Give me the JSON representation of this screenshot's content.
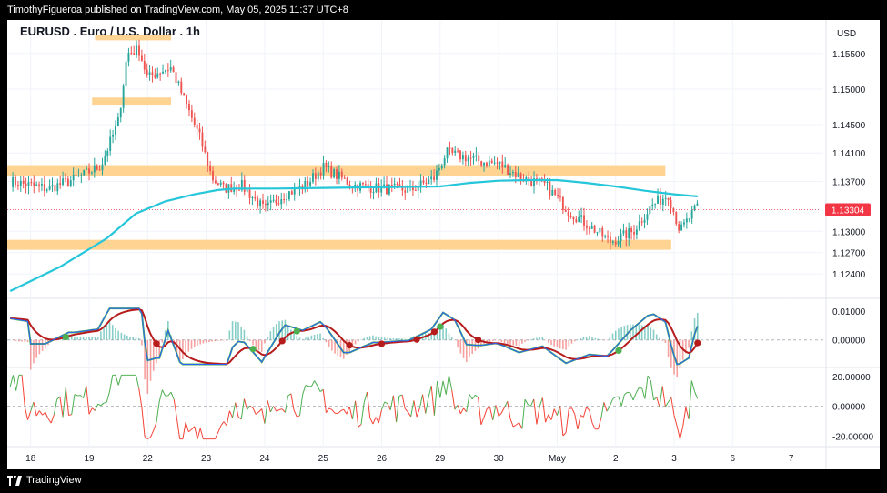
{
  "header": {
    "published": "TimothyFigueroa published on TradingView.com, May 05, 2025 11:37 UTC+8"
  },
  "footer": {
    "brand": "TradingView"
  },
  "colors": {
    "up": "#26a69a",
    "down": "#ef5350",
    "zone": "#ffcc80",
    "ma": "#26c6da",
    "macd_line": "#2962ff",
    "signal_line": "#b71c1c",
    "macd_cross_up": "#4caf50",
    "osc_up": "#4caf50",
    "osc_down": "#f44336",
    "price_tag": "#f23645"
  },
  "chart_data": [
    {
      "type": "candlestick",
      "title": "EURUSD . Euro / U.S. Dollar . 1h",
      "currency": "USD",
      "last_price_label": "1.13304",
      "last_price": 1.13304,
      "y_ticks": [
        "1.15500",
        "1.15000",
        "1.14500",
        "1.14100",
        "1.13700",
        "1.13000",
        "1.12700",
        "1.12400"
      ],
      "y_tick_values": [
        1.155,
        1.15,
        1.145,
        1.141,
        1.137,
        1.13,
        1.127,
        1.124
      ],
      "x_ticks": [
        "18",
        "19",
        "22",
        "23",
        "24",
        "25",
        "26",
        "29",
        "30",
        "May",
        "2",
        "3",
        "6",
        "7"
      ],
      "x_tick_days": [
        0,
        1,
        2,
        3,
        4,
        5,
        6,
        7,
        8,
        9,
        10,
        11,
        12,
        13
      ],
      "ylim": [
        1.1207,
        1.1597
      ],
      "xlim_days": [
        -0.4,
        13.55
      ],
      "zones": [
        {
          "x0": 1.1,
          "x1": 2.4,
          "y0": 1.157,
          "y1": 1.1576
        },
        {
          "x0": 1.05,
          "x1": 2.4,
          "y0": 1.1478,
          "y1": 1.1488
        },
        {
          "x0": -0.4,
          "x1": 10.85,
          "y0": 1.1378,
          "y1": 1.1393
        },
        {
          "x0": -0.4,
          "x1": 10.95,
          "y0": 1.1274,
          "y1": 1.1288
        }
      ],
      "ma_series": {
        "x": [
          -0.35,
          0.5,
          1.3,
          1.8,
          2.3,
          2.8,
          3.2,
          3.5,
          4.2,
          5.0,
          6.0,
          7.0,
          7.5,
          8.0,
          8.5,
          9.0,
          9.5,
          10.0,
          10.5,
          11.0,
          11.4
        ],
        "y": [
          1.1216,
          1.125,
          1.129,
          1.1325,
          1.1342,
          1.1352,
          1.1358,
          1.136,
          1.136,
          1.1361,
          1.1362,
          1.1363,
          1.1368,
          1.1371,
          1.1372,
          1.1372,
          1.1368,
          1.1363,
          1.1357,
          1.1352,
          1.1349
        ]
      },
      "anchors": {
        "x": [
          -0.35,
          0.3,
          0.8,
          1.2,
          1.5,
          1.65,
          1.85,
          2.0,
          2.2,
          2.4,
          2.6,
          2.9,
          3.1,
          3.3,
          3.6,
          4.0,
          4.3,
          4.7,
          5.0,
          5.5,
          6.0,
          6.5,
          6.9,
          7.1,
          7.4,
          7.7,
          8.0,
          8.4,
          8.8,
          9.2,
          9.6,
          9.9,
          10.3,
          10.6,
          10.9,
          11.1,
          11.4
        ],
        "y": [
          1.137,
          1.136,
          1.1375,
          1.1392,
          1.1455,
          1.155,
          1.1555,
          1.1515,
          1.1525,
          1.153,
          1.149,
          1.143,
          1.1375,
          1.136,
          1.1365,
          1.133,
          1.135,
          1.1365,
          1.139,
          1.1365,
          1.136,
          1.1358,
          1.1375,
          1.141,
          1.1405,
          1.1398,
          1.1395,
          1.1375,
          1.1365,
          1.1328,
          1.1305,
          1.1285,
          1.13,
          1.1335,
          1.1352,
          1.13,
          1.1335
        ]
      }
    },
    {
      "type": "line",
      "indicator": "macd",
      "y_ticks": [
        "0.01000",
        "0.00000"
      ],
      "y_tick_values": [
        0.01,
        0.0
      ],
      "ylim": [
        -0.0093,
        0.0142
      ],
      "signal_dots": [
        {
          "x": 0.6,
          "cross": "up"
        },
        {
          "x": 2.15,
          "cross": "down"
        },
        {
          "x": 3.8,
          "cross": "up"
        },
        {
          "x": 4.3,
          "cross": "down"
        },
        {
          "x": 4.55,
          "cross": "up"
        },
        {
          "x": 5.45,
          "cross": "down"
        },
        {
          "x": 6.0,
          "cross": "down"
        },
        {
          "x": 6.6,
          "cross": "down"
        },
        {
          "x": 6.9,
          "cross": "down"
        },
        {
          "x": 7.0,
          "cross": "up"
        },
        {
          "x": 7.65,
          "cross": "down"
        },
        {
          "x": 10.05,
          "cross": "up"
        },
        {
          "x": 11.4,
          "cross": "down"
        }
      ]
    },
    {
      "type": "line",
      "indicator": "oscillator",
      "y_ticks": [
        "20.00000",
        "0.00000",
        "-20.00000"
      ],
      "y_tick_values": [
        20,
        0,
        -20
      ],
      "ylim": [
        -26.5,
        25.5
      ],
      "zero_line": 0
    }
  ]
}
